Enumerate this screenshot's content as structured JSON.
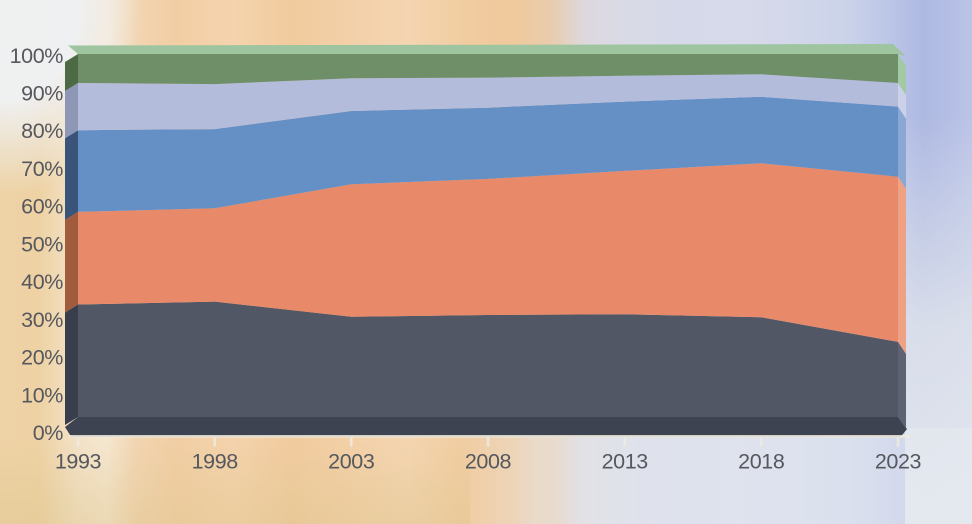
{
  "chart_data": {
    "type": "area",
    "stacking": "percent",
    "projection": "3d-extruded",
    "grid": "off",
    "legend": "none",
    "x": [
      1993,
      1998,
      2003,
      2008,
      2013,
      2018,
      2023
    ],
    "x_tick_labels": [
      "1993",
      "1998",
      "2003",
      "2008",
      "2013",
      "2018",
      "2023"
    ],
    "y_tick_labels": [
      "0%",
      "10%",
      "20%",
      "30%",
      "40%",
      "50%",
      "60%",
      "70%",
      "80%",
      "90%",
      "100%"
    ],
    "ylim": [
      0,
      100
    ],
    "series": [
      {
        "name": "series-dark-slate",
        "color": "#515764",
        "color_left": "#383e4c",
        "color_right": "#5d6372",
        "values": [
          31.0,
          31.8,
          27.6,
          28.1,
          28.3,
          27.5,
          20.7
        ]
      },
      {
        "name": "series-orange",
        "color": "#e8896a",
        "color_left": "#a15b3d",
        "color_right": "#efa183",
        "values": [
          25.5,
          25.7,
          36.5,
          37.5,
          39.5,
          42.4,
          45.5
        ]
      },
      {
        "name": "series-blue",
        "color": "#6590c5",
        "color_left": "#3a5379",
        "color_right": "#8ba7d3",
        "values": [
          22.5,
          21.8,
          20.2,
          19.6,
          19.1,
          18.3,
          19.3
        ]
      },
      {
        "name": "series-lavender",
        "color": "#b4bcdc",
        "color_left": "#8e97b6",
        "color_right": "#cad1e9",
        "values": [
          13.0,
          12.4,
          9.0,
          8.3,
          7.1,
          6.2,
          6.5
        ]
      },
      {
        "name": "series-green",
        "color": "#6f8f68",
        "color_left": "#4c6b44",
        "color_right": "#a3c8a4",
        "color_top": "#9ec59f",
        "values": [
          8.0,
          8.3,
          6.7,
          6.5,
          6.0,
          5.6,
          8.0
        ]
      }
    ],
    "floor_color": "#3d4351",
    "axis_line_color": "#eeeade",
    "label_color": "#56585e"
  },
  "background": {
    "left_tan": "#eed3a6",
    "mid_peach": "#f1cb9e",
    "right_periwinkle": "#aeb9e2",
    "top_left_white": "#eff1f3",
    "bottom_right_gray_blue": "#e2e6ec"
  }
}
